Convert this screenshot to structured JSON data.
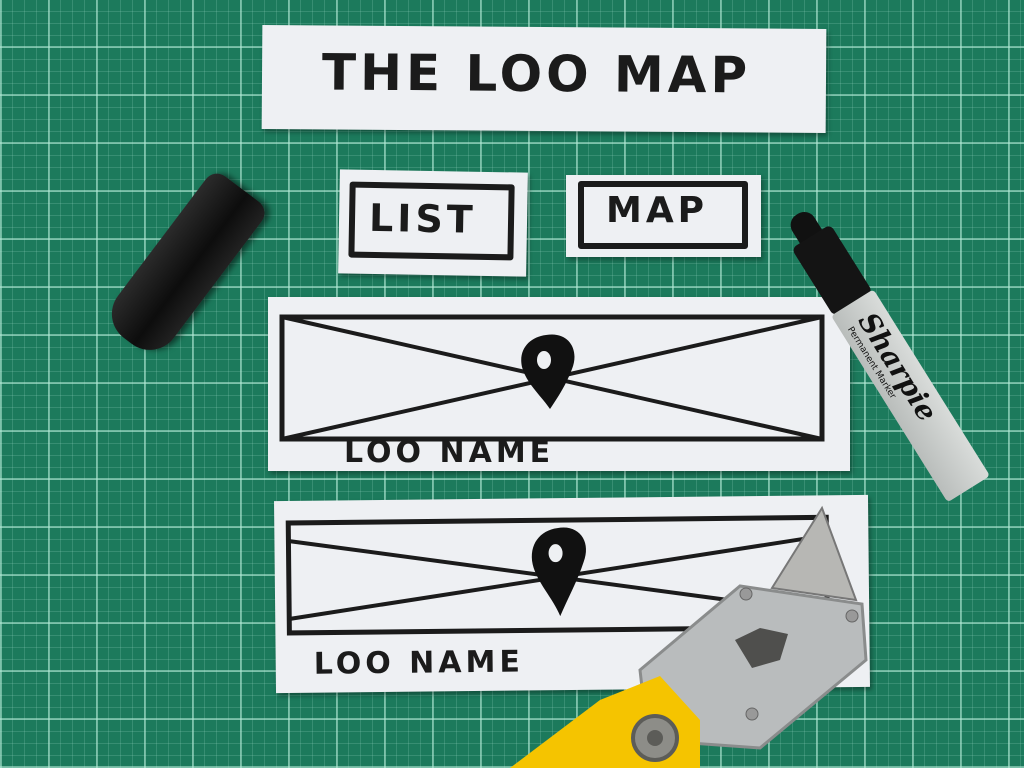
{
  "title_card": {
    "text": "THE LOO MAP"
  },
  "tabs": [
    {
      "label": "LIST"
    },
    {
      "label": "MAP"
    }
  ],
  "cards": [
    {
      "caption": "LOO NAME",
      "icon": "map-pin-icon"
    },
    {
      "caption": "LOO NAME",
      "icon": "map-pin-icon"
    }
  ],
  "marker": {
    "brand": "Sharpie",
    "subtext": "Permanent Marker"
  },
  "colors": {
    "mat": "#1c7a5c",
    "paper": "#eef0f3",
    "ink": "#1b1b1b",
    "knife": "#f5c400"
  }
}
